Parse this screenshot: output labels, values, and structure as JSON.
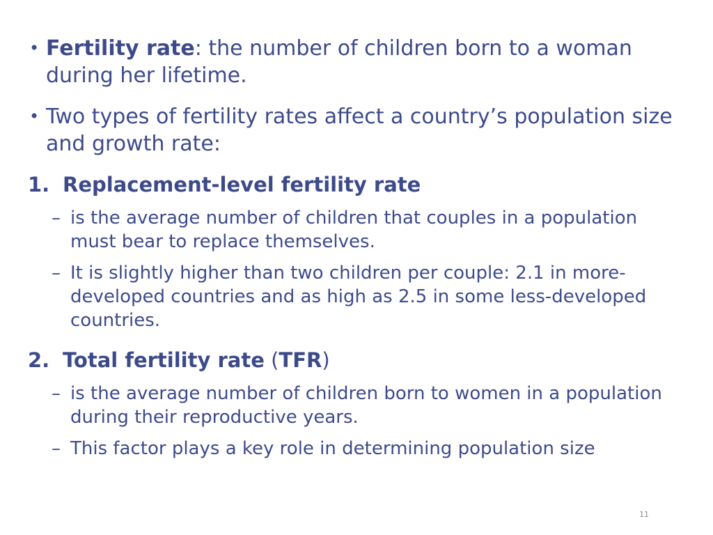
{
  "bullets": [
    {
      "term": "Fertility rate",
      "rest": ": the number of children born to a woman during her lifetime."
    },
    {
      "text": "Two types of fertility rates affect a country’s population size and growth rate:"
    }
  ],
  "sections": [
    {
      "number": "1.",
      "title": "Replacement-level fertility rate",
      "items": [
        "is the average number of children that couples in a population must bear to replace themselves.",
        "It is slightly higher than two children per couple: 2.1 in more-developed countries and as high as 2.5 in some less-developed countries."
      ]
    },
    {
      "number": "2.",
      "title": "Total fertility rate",
      "paren_open": " (",
      "abbr": "TFR",
      "paren_close": ")",
      "items": [
        "is the average number of children born to women in a population during their reproductive years.",
        "This factor plays a key role in determining population size"
      ]
    }
  ],
  "bullet_marker": "•",
  "dash_marker": "–",
  "page_number": "11"
}
